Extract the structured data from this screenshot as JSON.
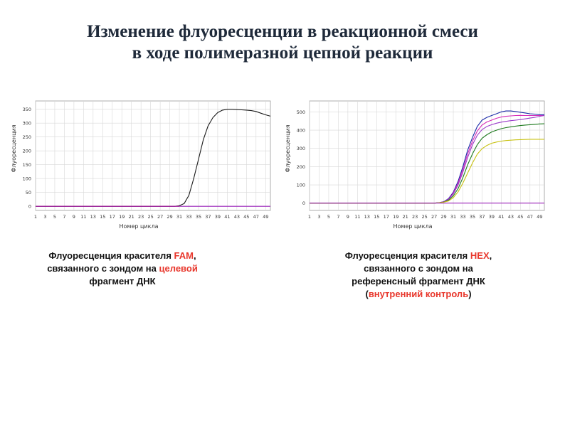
{
  "title_lines": [
    "Изменение флуоресценции в реакционной смеси",
    "в ходе полимеразной цепной реакции"
  ],
  "captions": {
    "left": {
      "line1_pre": "Флуоресценция красителя ",
      "line1_red": "FAM",
      "line1_post": ",",
      "line2_pre": "связанного с зондом  на ",
      "line2_red": "целевой",
      "line3": "фрагмент ДНК"
    },
    "right": {
      "line1_pre": "Флуоресценция красителя ",
      "line1_red": "HEX",
      "line1_post": ",",
      "line2": "связанного с зондом на",
      "line3": "референсный фрагмент ДНК",
      "line4_pre": "(",
      "line4_red": "внутренний контроль",
      "line4_post": ")"
    }
  },
  "chart_data": [
    {
      "type": "line",
      "xlabel": "Номер цикла",
      "ylabel": "Флуоресценция",
      "x_ticks": [
        1,
        3,
        5,
        7,
        9,
        11,
        13,
        15,
        17,
        19,
        21,
        23,
        25,
        27,
        29,
        31,
        33,
        35,
        37,
        39,
        41,
        43,
        45,
        47,
        49
      ],
      "y_ticks": [
        0,
        50,
        100,
        150,
        200,
        250,
        300,
        350
      ],
      "y_tick_labels": [
        "0",
        "50",
        "100",
        "150",
        "200",
        "250",
        "300",
        "350"
      ],
      "xlim": [
        1,
        50
      ],
      "ylim": [
        -15,
        380
      ],
      "grid": true,
      "series": [
        {
          "color": "#1a1a1a",
          "x": [
            1,
            29,
            30,
            31,
            32,
            33,
            34,
            35,
            36,
            37,
            38,
            39,
            40,
            41,
            42,
            43,
            44,
            45,
            46,
            47,
            48,
            49,
            50
          ],
          "y": [
            0,
            0,
            0,
            2,
            10,
            40,
            100,
            170,
            240,
            290,
            320,
            338,
            347,
            350,
            350,
            349,
            348,
            347,
            345,
            342,
            336,
            330,
            325
          ]
        },
        {
          "color": "#c00000",
          "x": [
            1,
            31
          ],
          "y": [
            0,
            0
          ]
        },
        {
          "color": "#9a22b8",
          "x": [
            1,
            50
          ],
          "y": [
            0,
            0
          ]
        }
      ]
    },
    {
      "type": "line",
      "xlabel": "Номер цикла",
      "ylabel": "Флуоресценция",
      "x_ticks": [
        1,
        3,
        5,
        7,
        9,
        11,
        13,
        15,
        17,
        19,
        21,
        23,
        25,
        27,
        29,
        31,
        33,
        35,
        37,
        39,
        41,
        43,
        45,
        47,
        49
      ],
      "y_ticks": [
        0,
        100,
        200,
        300,
        400,
        500
      ],
      "y_tick_labels": [
        "0",
        "100",
        "200",
        "300",
        "400",
        "500"
      ],
      "xlim": [
        1,
        50
      ],
      "ylim": [
        -40,
        560
      ],
      "grid": true,
      "series": [
        {
          "color": "#1b2aa8",
          "x": [
            1,
            27,
            28,
            29,
            30,
            31,
            32,
            33,
            34,
            35,
            36,
            37,
            38,
            39,
            40,
            41,
            42,
            43,
            44,
            45,
            46,
            47,
            48,
            49,
            50
          ],
          "y": [
            0,
            0,
            2,
            8,
            25,
            60,
            120,
            200,
            290,
            360,
            420,
            455,
            470,
            480,
            490,
            500,
            505,
            505,
            502,
            498,
            494,
            490,
            488,
            485,
            485
          ]
        },
        {
          "color": "#d62ab8",
          "x": [
            1,
            27,
            28,
            29,
            30,
            31,
            32,
            33,
            34,
            35,
            36,
            37,
            38,
            39,
            40,
            41,
            42,
            43,
            44,
            45,
            46,
            47,
            48,
            49,
            50
          ],
          "y": [
            0,
            0,
            2,
            8,
            22,
            55,
            110,
            185,
            270,
            340,
            395,
            428,
            445,
            455,
            465,
            472,
            476,
            478,
            480,
            481,
            480,
            480,
            480,
            480,
            480
          ]
        },
        {
          "color": "#9a3ac9",
          "x": [
            1,
            27,
            28,
            29,
            30,
            31,
            32,
            33,
            34,
            35,
            36,
            37,
            38,
            39,
            40,
            41,
            42,
            43,
            44,
            45,
            46,
            47,
            48,
            49,
            50
          ],
          "y": [
            0,
            0,
            2,
            7,
            20,
            50,
            100,
            170,
            250,
            320,
            372,
            403,
            420,
            430,
            438,
            444,
            448,
            452,
            455,
            458,
            462,
            466,
            470,
            476,
            480
          ]
        },
        {
          "color": "#1e7a1e",
          "x": [
            1,
            27,
            28,
            29,
            30,
            31,
            32,
            33,
            34,
            35,
            36,
            37,
            38,
            39,
            40,
            41,
            42,
            43,
            44,
            45,
            46,
            47,
            48,
            49,
            50
          ],
          "y": [
            0,
            0,
            2,
            6,
            16,
            40,
            80,
            140,
            210,
            270,
            320,
            355,
            375,
            390,
            400,
            408,
            414,
            418,
            422,
            425,
            428,
            430,
            432,
            434,
            435
          ]
        },
        {
          "color": "#c8c212",
          "x": [
            1,
            27,
            28,
            29,
            30,
            31,
            32,
            33,
            34,
            35,
            36,
            37,
            38,
            39,
            40,
            41,
            42,
            43,
            44,
            45,
            46,
            47,
            48,
            49,
            50
          ],
          "y": [
            0,
            0,
            2,
            5,
            12,
            30,
            62,
            110,
            165,
            220,
            268,
            298,
            316,
            328,
            335,
            340,
            343,
            345,
            347,
            348,
            349,
            350,
            350,
            350,
            350
          ]
        },
        {
          "color": "#9a22b8",
          "x": [
            1,
            50
          ],
          "y": [
            0,
            0
          ]
        }
      ]
    }
  ]
}
